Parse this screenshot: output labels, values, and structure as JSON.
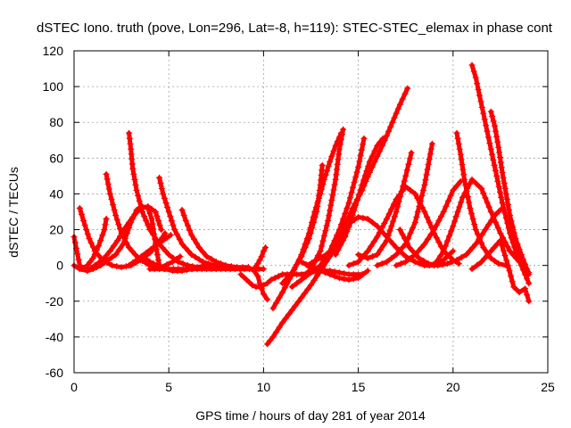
{
  "chart_data": {
    "type": "line",
    "title": "dSTEC Iono. truth (pove, Lon=296, Lat=-8, h=119): STEC-STEC_elemax in phase cont",
    "xlabel": "GPS time / hours of day 281 of year 2014",
    "ylabel": "dSTEC  / TECUs",
    "xlim": [
      0,
      25
    ],
    "ylim": [
      -60,
      120
    ],
    "xticks": [
      0,
      5,
      10,
      15,
      20,
      25
    ],
    "yticks": [
      -60,
      -40,
      -20,
      0,
      20,
      40,
      60,
      80,
      100,
      120
    ],
    "grid": true,
    "marker": "+",
    "color": "#ff0000",
    "series": [
      {
        "x": [
          0.0,
          0.3,
          0.7,
          1.0,
          1.4,
          1.8,
          2.2,
          2.6,
          3.0,
          3.3,
          3.6,
          3.9,
          4.1,
          4.3,
          4.5
        ],
        "values": [
          16,
          0,
          -3,
          -2,
          0,
          3,
          6,
          12,
          24,
          31,
          33,
          32,
          26,
          12,
          0
        ]
      },
      {
        "x": [
          0.0,
          0.3,
          0.7,
          1.1,
          1.5,
          1.9,
          2.3,
          2.7,
          3.1,
          3.5,
          3.9,
          4.3,
          4.6
        ],
        "values": [
          0,
          -2,
          -3,
          0,
          3,
          8,
          14,
          21,
          27,
          32,
          33,
          30,
          20
        ]
      },
      {
        "x": [
          0.3,
          0.5,
          0.8,
          1.1,
          1.5,
          2.0,
          2.5,
          3.0,
          3.5,
          4.0,
          4.5,
          4.8
        ],
        "values": [
          32,
          25,
          15,
          8,
          3,
          0,
          -1,
          0,
          3,
          7,
          13,
          18
        ]
      },
      {
        "x": [
          0.4,
          0.7,
          1.0,
          1.3,
          1.6,
          1.7
        ],
        "values": [
          -2,
          0,
          4,
          11,
          20,
          26
        ]
      },
      {
        "x": [
          1.7,
          1.9,
          2.2,
          2.5,
          2.9,
          3.4,
          4.0,
          4.6,
          5.2,
          5.6
        ],
        "values": [
          51,
          40,
          28,
          18,
          10,
          4,
          0,
          -1,
          2,
          5
        ]
      },
      {
        "x": [
          2.9,
          3.0,
          3.1,
          3.3,
          3.6,
          4.0,
          4.5,
          5.0,
          5.5,
          6.0,
          6.5,
          7.0
        ],
        "values": [
          74,
          65,
          54,
          42,
          30,
          20,
          12,
          6,
          2,
          0,
          -1,
          0
        ]
      },
      {
        "x": [
          2.9,
          3.3,
          3.8,
          4.3,
          4.7,
          5.1
        ],
        "values": [
          0,
          3,
          7,
          11,
          14,
          17
        ]
      },
      {
        "x": [
          4.5,
          4.7,
          5.0,
          5.3,
          5.7,
          6.2,
          6.8,
          7.4,
          8.0
        ],
        "values": [
          49,
          40,
          30,
          20,
          12,
          6,
          2,
          0,
          -1
        ]
      },
      {
        "x": [
          3.6,
          4.0,
          4.4,
          4.8,
          5.2,
          5.7,
          6.2,
          6.8,
          7.4,
          8.0
        ],
        "values": [
          5,
          2,
          0,
          -2,
          -3,
          -3,
          -2,
          -1,
          0,
          0
        ]
      },
      {
        "x": [
          5.7,
          5.9,
          6.2,
          6.6,
          7.0,
          7.5,
          8.0,
          8.6,
          9.2,
          9.5,
          9.7,
          9.8,
          10.0,
          10.2
        ],
        "values": [
          31,
          25,
          17,
          10,
          5,
          2,
          0,
          -1,
          -1,
          -3,
          -6,
          -10,
          -16,
          -19
        ]
      },
      {
        "x": [
          4.0,
          5.0,
          6.0,
          7.0,
          8.0,
          9.0,
          10.0
        ],
        "values": [
          -2,
          -2,
          -2,
          -2,
          -2,
          -2,
          -2
        ]
      },
      {
        "x": [
          8.8,
          9.1,
          9.4,
          9.6,
          9.8,
          10.0,
          10.2,
          10.4,
          10.6,
          10.8,
          11.0,
          11.5,
          12.0,
          12.5,
          13.0,
          13.5,
          14.0,
          14.5,
          15.0,
          15.2
        ],
        "values": [
          -5,
          -8,
          -11,
          -12,
          -12,
          -11,
          -10,
          -8,
          -7,
          -6,
          -5,
          -5,
          -5,
          -4,
          -3,
          -3,
          -4,
          -5,
          -5,
          -5
        ]
      },
      {
        "x": [
          9.5,
          9.7,
          9.9,
          10.0,
          10.1
        ],
        "values": [
          -2,
          1,
          5,
          8,
          10
        ]
      },
      {
        "x": [
          10.2,
          10.5,
          11.0,
          11.5,
          12.0,
          12.5,
          13.0,
          13.5,
          14.0,
          14.3,
          14.7,
          15.2,
          15.6,
          16.0,
          16.4,
          16.8,
          17.2,
          17.6
        ],
        "values": [
          -44,
          -40,
          -32,
          -25,
          -18,
          -11,
          -3,
          5,
          14,
          22,
          32,
          42,
          52,
          61,
          70,
          80,
          90,
          99
        ]
      },
      {
        "x": [
          10.5,
          11.0,
          11.5,
          12.0,
          12.4,
          12.7,
          13.0,
          13.2,
          13.5,
          13.8,
          14.1
        ],
        "values": [
          -24,
          -15,
          -5,
          6,
          18,
          30,
          40,
          48,
          58,
          67,
          74
        ]
      },
      {
        "x": [
          11.0,
          11.5,
          12.0,
          12.4,
          12.8,
          13.0,
          13.1
        ],
        "values": [
          -10,
          -4,
          5,
          15,
          30,
          45,
          56
        ]
      },
      {
        "x": [
          11.5,
          12.0,
          12.5,
          13.0,
          13.4,
          13.8,
          14.0,
          14.2
        ],
        "values": [
          -12,
          -8,
          -2,
          8,
          25,
          48,
          65,
          76
        ]
      },
      {
        "x": [
          12.0,
          12.5,
          13.0,
          13.5,
          14.0,
          14.5,
          15.0,
          15.3
        ],
        "values": [
          -8,
          -4,
          0,
          8,
          20,
          35,
          55,
          71
        ]
      },
      {
        "x": [
          12.3,
          12.8,
          13.3,
          13.8,
          14.3,
          14.7,
          15.2,
          15.6,
          16.0,
          16.3
        ],
        "values": [
          0,
          3,
          6,
          10,
          16,
          28,
          45,
          58,
          67,
          71
        ]
      },
      {
        "x": [
          12.0,
          12.5,
          13.0,
          13.5,
          14.0,
          14.5,
          15.0,
          15.5
        ],
        "values": [
          2,
          -1,
          -3,
          -5,
          -7,
          -8,
          -7,
          -3
        ]
      },
      {
        "x": [
          13.8,
          14.2,
          14.6,
          15.0,
          15.5,
          16.0,
          16.5,
          17.0,
          17.5,
          18.0,
          18.5,
          19.0,
          19.5,
          20.0
        ],
        "values": [
          6,
          14,
          24,
          27,
          26,
          22,
          16,
          10,
          5,
          2,
          0,
          0,
          3,
          8
        ]
      },
      {
        "x": [
          14.5,
          15.0,
          15.5,
          16.0,
          16.5,
          17.0,
          17.5,
          18.0,
          18.5,
          19.0,
          19.5,
          20.0,
          20.3
        ],
        "values": [
          0,
          2,
          8,
          16,
          26,
          37,
          44,
          40,
          30,
          18,
          8,
          3,
          1
        ]
      },
      {
        "x": [
          15.0,
          15.5,
          16.0,
          16.5,
          17.0,
          17.5,
          17.8
        ],
        "values": [
          6,
          4,
          6,
          14,
          30,
          50,
          63
        ]
      },
      {
        "x": [
          16.0,
          16.5,
          17.0,
          17.5,
          18.0,
          18.5,
          18.9
        ],
        "values": [
          0,
          2,
          6,
          12,
          24,
          45,
          68
        ]
      },
      {
        "x": [
          17.0,
          17.5,
          18.0,
          18.5,
          19.0,
          19.5,
          20.0,
          20.4
        ],
        "values": [
          0,
          2,
          6,
          12,
          20,
          30,
          42,
          47
        ]
      },
      {
        "x": [
          17.2,
          17.7,
          18.2,
          18.7,
          19.2,
          19.7,
          20.2,
          20.7,
          21.2,
          21.7,
          22.2,
          22.6
        ],
        "values": [
          20,
          10,
          4,
          1,
          0,
          1,
          3,
          6,
          12,
          20,
          28,
          32
        ]
      },
      {
        "x": [
          19.0,
          19.5,
          20.0,
          20.5,
          21.0,
          21.5,
          22.0,
          22.5,
          23.0,
          23.5,
          24.0
        ],
        "values": [
          0,
          8,
          22,
          38,
          48,
          43,
          30,
          18,
          8,
          2,
          -4
        ]
      },
      {
        "x": [
          20.2,
          20.4,
          20.6,
          20.9,
          21.2,
          21.6,
          22.0,
          22.4,
          22.8
        ],
        "values": [
          74,
          62,
          48,
          32,
          20,
          10,
          4,
          1,
          0
        ]
      },
      {
        "x": [
          21.0,
          21.2,
          21.4,
          21.6,
          21.8,
          22.0,
          22.3,
          22.6,
          23.0,
          23.4,
          23.8,
          24.0
        ],
        "values": [
          112,
          105,
          95,
          85,
          75,
          65,
          50,
          35,
          18,
          5,
          -5,
          -10
        ]
      },
      {
        "x": [
          22.0,
          22.2,
          22.4,
          22.6,
          22.8,
          23.0,
          23.3,
          23.6,
          23.9,
          24.0
        ],
        "values": [
          86,
          78,
          66,
          52,
          40,
          28,
          15,
          6,
          -2,
          -5
        ]
      },
      {
        "x": [
          21.0,
          21.5,
          22.0,
          22.5,
          22.9,
          23.2,
          23.5,
          23.8,
          24.0
        ],
        "values": [
          -2,
          2,
          8,
          14,
          0,
          -12,
          -15,
          -13,
          -20
        ]
      }
    ]
  }
}
